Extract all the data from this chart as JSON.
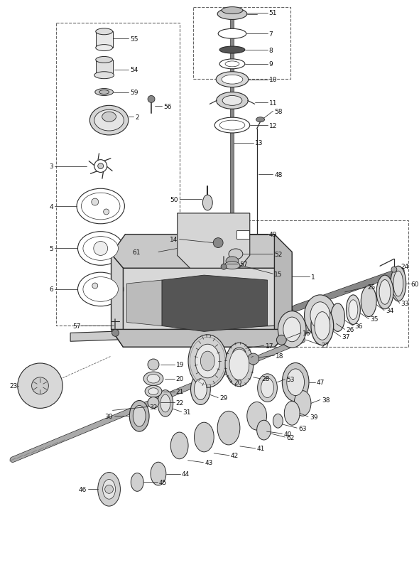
{
  "bg_color": "#ffffff",
  "lc": "#2a2a2a",
  "tc": "#111111",
  "fig_w": 5.9,
  "fig_h": 8.03,
  "dpi": 100
}
